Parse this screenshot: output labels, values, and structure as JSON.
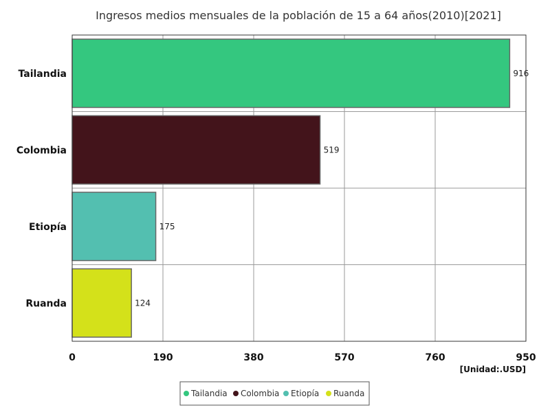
{
  "chart_data": {
    "type": "bar",
    "orientation": "horizontal",
    "title": "Ingresos medios mensuales de la población de 15 a 64 años(2010)[2021]",
    "categories": [
      "Tailandia",
      "Colombia",
      "Etiopía",
      "Ruanda"
    ],
    "values": [
      916,
      519,
      175,
      124
    ],
    "colors": [
      "#34c77f",
      "#43141b",
      "#53bfb0",
      "#d4e11a"
    ],
    "xlim": [
      0,
      950
    ],
    "xticks": [
      0,
      190,
      380,
      570,
      760,
      950
    ],
    "unit_label": "[Unidad:.USD]",
    "grid": true,
    "legend_position": "bottom"
  }
}
